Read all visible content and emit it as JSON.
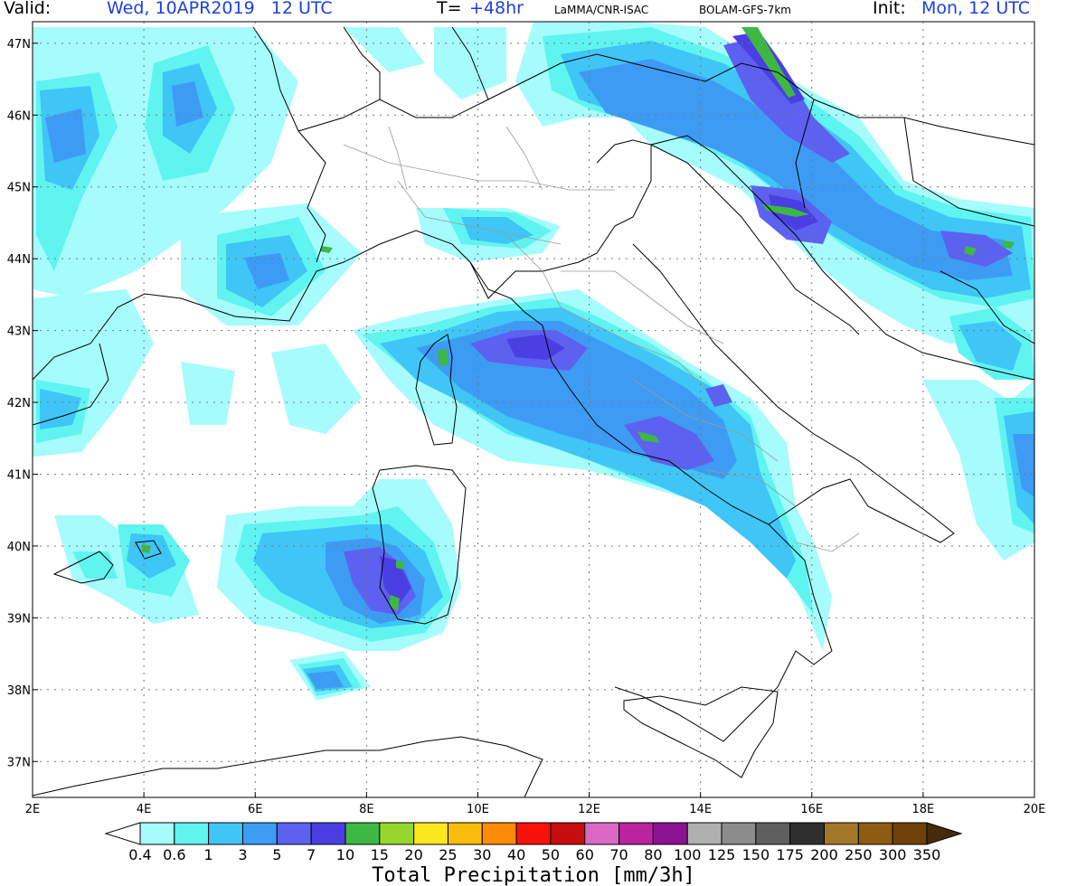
{
  "header": {
    "valid_label": "Valid:",
    "valid_value": "Wed, 10APR2019   12 UTC",
    "t_label": "T=",
    "t_value": "+48hr",
    "source": "LaMMA/CNR-ISAC",
    "model": "BOLAM-GFS-7km",
    "init_label": "Init:",
    "init_value": "Mon, 12 UTC"
  },
  "axes": {
    "lat_labels": [
      "47N",
      "46N",
      "45N",
      "44N",
      "43N",
      "42N",
      "41N",
      "40N",
      "39N",
      "38N",
      "37N"
    ],
    "lon_labels": [
      "2E",
      "4E",
      "6E",
      "8E",
      "10E",
      "12E",
      "14E",
      "16E",
      "18E",
      "20E"
    ],
    "lon_range": [
      2,
      20
    ],
    "lat_range": [
      36.5,
      47.3
    ]
  },
  "colorbar": {
    "title": "Total Precipitation [mm/3h]",
    "ticks": [
      "0.4",
      "0.6",
      "1",
      "3",
      "5",
      "7",
      "10",
      "15",
      "20",
      "25",
      "30",
      "40",
      "50",
      "60",
      "70",
      "80",
      "100",
      "125",
      "150",
      "175",
      "200",
      "250",
      "300",
      "350"
    ],
    "colors": [
      "#a6fcfc",
      "#5ff4f0",
      "#3fc5f6",
      "#3e9bf3",
      "#5c61f0",
      "#4b3fe3",
      "#3cb843",
      "#97d62c",
      "#fae81e",
      "#fbbd0d",
      "#fb8b08",
      "#f9120a",
      "#c60c0d",
      "#d969c4",
      "#b8259f",
      "#8b1290",
      "#b0b0b0",
      "#8c8c8c",
      "#5f5f5f",
      "#2f2f2f",
      "#a27728",
      "#8d5c12",
      "#70410b",
      "#5c340c"
    ],
    "left_arrow_color": "#ffffff",
    "right_arrow_color": "#472a0c"
  }
}
